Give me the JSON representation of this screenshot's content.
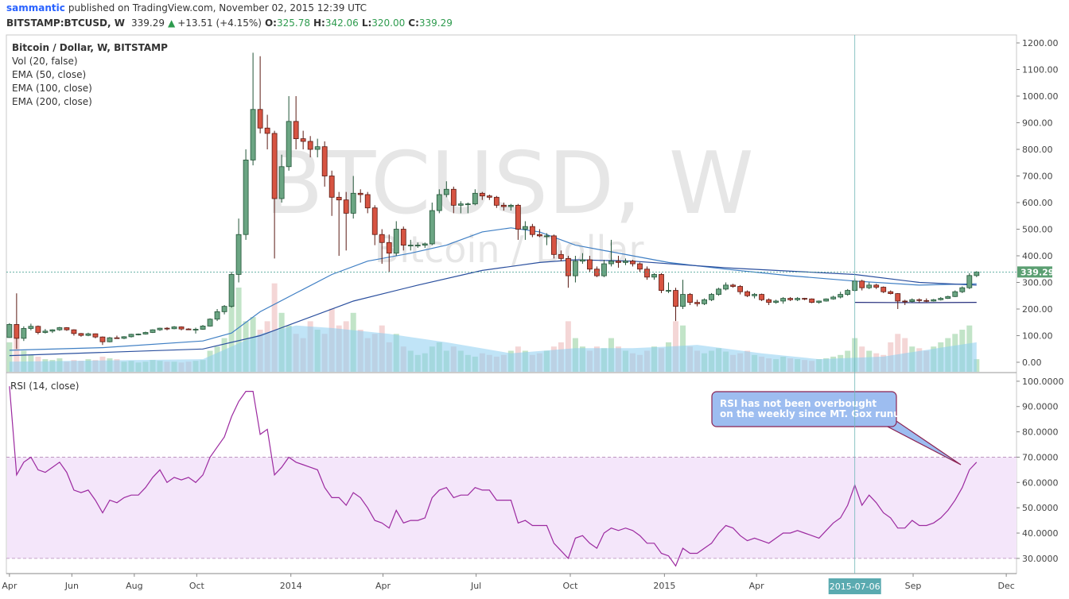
{
  "header": {
    "author": "sammantic",
    "published": "published on TradingView.com, November 02, 2015 12:39 UTC",
    "symbol": "BITSTAMP:BTCUSD, W",
    "last": "339.29",
    "arrow": "▲",
    "change": "+13.51 (+4.15%)",
    "items": [
      {
        "label": "O:",
        "value": "325.78"
      },
      {
        "label": "H:",
        "value": "342.06"
      },
      {
        "label": "L:",
        "value": "320.00"
      },
      {
        "label": "C:",
        "value": "339.29"
      }
    ]
  },
  "chart_data": {
    "type": "candlestick",
    "title": "Bitcoin / Dollar, W, BITSTAMP",
    "watermark": [
      "BTCUSD, W",
      "Bitcoin / Dollar"
    ],
    "legend": "top-left",
    "grid": false,
    "up_color": "#6ba583",
    "down_color": "#d75442",
    "xlim": [
      "2013-03-29",
      "2015-12-11"
    ],
    "xticks": [
      {
        "value": "2013-04-01",
        "label": "Apr"
      },
      {
        "value": "2013-06-01",
        "label": "Jun"
      },
      {
        "value": "2013-08-01",
        "label": "Aug"
      },
      {
        "value": "2013-10-01",
        "label": "Oct"
      },
      {
        "value": "2014-01-01",
        "label": "2014"
      },
      {
        "value": "2014-04-01",
        "label": "Apr"
      },
      {
        "value": "2014-07-01",
        "label": "Jul"
      },
      {
        "value": "2014-10-01",
        "label": "Oct"
      },
      {
        "value": "2015-01-01",
        "label": "2015"
      },
      {
        "value": "2015-04-01",
        "label": "Apr"
      },
      {
        "value": "2015-09-01",
        "label": "Sep"
      },
      {
        "value": "2015-12-01",
        "label": "Dec"
      }
    ],
    "crosshair_x": "2015-07-06",
    "last_price": {
      "value": 339.29,
      "label": "339.29"
    },
    "ylim": [
      -35.8,
      1229.9
    ],
    "yticks": [
      {
        "value": 0,
        "label": "0.00"
      },
      {
        "value": 100,
        "label": "100.00"
      },
      {
        "value": 200,
        "label": "200.00"
      },
      {
        "value": 300,
        "label": "300.00"
      },
      {
        "value": 400,
        "label": "400.00"
      },
      {
        "value": 500,
        "label": "500.00"
      },
      {
        "value": 600,
        "label": "600.00"
      },
      {
        "value": 700,
        "label": "700.00"
      },
      {
        "value": 800,
        "label": "800.00"
      },
      {
        "value": 900,
        "label": "900.00"
      },
      {
        "value": 1000,
        "label": "1000.00"
      },
      {
        "value": 1100,
        "label": "1100.00"
      },
      {
        "value": 1200,
        "label": "1200.00"
      }
    ],
    "x": [
      "2013-04-01",
      "2013-04-08",
      "2013-04-15",
      "2013-04-22",
      "2013-04-29",
      "2013-05-06",
      "2013-05-13",
      "2013-05-20",
      "2013-05-27",
      "2013-06-03",
      "2013-06-10",
      "2013-06-17",
      "2013-06-24",
      "2013-07-01",
      "2013-07-08",
      "2013-07-15",
      "2013-07-22",
      "2013-07-29",
      "2013-08-05",
      "2013-08-12",
      "2013-08-19",
      "2013-08-26",
      "2013-09-02",
      "2013-09-09",
      "2013-09-16",
      "2013-09-23",
      "2013-09-30",
      "2013-10-07",
      "2013-10-14",
      "2013-10-21",
      "2013-10-28",
      "2013-11-04",
      "2013-11-11",
      "2013-11-18",
      "2013-11-25",
      "2013-12-02",
      "2013-12-09",
      "2013-12-16",
      "2013-12-23",
      "2013-12-30",
      "2014-01-06",
      "2014-01-13",
      "2014-01-20",
      "2014-01-27",
      "2014-02-03",
      "2014-02-10",
      "2014-02-17",
      "2014-02-24",
      "2014-03-03",
      "2014-03-10",
      "2014-03-17",
      "2014-03-24",
      "2014-03-31",
      "2014-04-07",
      "2014-04-14",
      "2014-04-21",
      "2014-04-28",
      "2014-05-05",
      "2014-05-12",
      "2014-05-19",
      "2014-05-26",
      "2014-06-02",
      "2014-06-09",
      "2014-06-16",
      "2014-06-23",
      "2014-06-30",
      "2014-07-07",
      "2014-07-14",
      "2014-07-21",
      "2014-07-28",
      "2014-08-04",
      "2014-08-11",
      "2014-08-18",
      "2014-08-25",
      "2014-09-01",
      "2014-09-08",
      "2014-09-15",
      "2014-09-22",
      "2014-09-29",
      "2014-10-06",
      "2014-10-13",
      "2014-10-20",
      "2014-10-27",
      "2014-11-03",
      "2014-11-10",
      "2014-11-17",
      "2014-11-24",
      "2014-12-01",
      "2014-12-08",
      "2014-12-15",
      "2014-12-22",
      "2014-12-29",
      "2015-01-05",
      "2015-01-12",
      "2015-01-19",
      "2015-01-26",
      "2015-02-02",
      "2015-02-09",
      "2015-02-16",
      "2015-02-23",
      "2015-03-02",
      "2015-03-09",
      "2015-03-16",
      "2015-03-23",
      "2015-03-30",
      "2015-04-06",
      "2015-04-13",
      "2015-04-20",
      "2015-04-27",
      "2015-05-04",
      "2015-05-11",
      "2015-05-18",
      "2015-05-25",
      "2015-06-01",
      "2015-06-08",
      "2015-06-15",
      "2015-06-22",
      "2015-06-29",
      "2015-07-06",
      "2015-07-13",
      "2015-07-20",
      "2015-07-27",
      "2015-08-03",
      "2015-08-10",
      "2015-08-17",
      "2015-08-24",
      "2015-08-31",
      "2015-09-07",
      "2015-09-14",
      "2015-09-21",
      "2015-09-28",
      "2015-10-05",
      "2015-10-12",
      "2015-10-19",
      "2015-10-26",
      "2015-11-02"
    ],
    "open": [
      93,
      142,
      90,
      127,
      135,
      112,
      117,
      122,
      130,
      122,
      108,
      101,
      107,
      95,
      77,
      92,
      90,
      96,
      105,
      106,
      112,
      122,
      128,
      126,
      133,
      125,
      124,
      124,
      136,
      162,
      190,
      210,
      330,
      480,
      760,
      950,
      880,
      860,
      615,
      735,
      905,
      840,
      830,
      800,
      810,
      700,
      620,
      610,
      560,
      635,
      630,
      580,
      480,
      450,
      410,
      500,
      440,
      440,
      440,
      445,
      570,
      630,
      650,
      590,
      595,
      595,
      635,
      625,
      620,
      590,
      585,
      590,
      500,
      510,
      480,
      475,
      475,
      405,
      390,
      325,
      380,
      385,
      350,
      325,
      370,
      380,
      375,
      380,
      370,
      350,
      320,
      330,
      270,
      270,
      210,
      255,
      225,
      220,
      235,
      255,
      275,
      290,
      285,
      265,
      250,
      255,
      235,
      225,
      230,
      240,
      235,
      240,
      238,
      225,
      230,
      238,
      245,
      255,
      270,
      305,
      280,
      290,
      282,
      265,
      258,
      230,
      228,
      235,
      232,
      230,
      235,
      240,
      247,
      265,
      280,
      325.78
    ],
    "high": [
      147,
      259,
      135,
      145,
      138,
      125,
      124,
      133,
      132,
      124,
      110,
      111,
      108,
      97,
      95,
      100,
      98,
      107,
      108,
      115,
      124,
      130,
      132,
      136,
      135,
      128,
      130,
      140,
      165,
      200,
      215,
      340,
      540,
      800,
      1163,
      1150,
      930,
      870,
      780,
      1000,
      1000,
      870,
      850,
      840,
      830,
      720,
      640,
      640,
      700,
      650,
      640,
      590,
      500,
      480,
      530,
      510,
      460,
      450,
      450,
      600,
      650,
      680,
      660,
      605,
      600,
      650,
      640,
      630,
      625,
      600,
      595,
      595,
      530,
      520,
      500,
      485,
      480,
      420,
      400,
      400,
      410,
      400,
      360,
      385,
      460,
      400,
      390,
      385,
      375,
      360,
      335,
      335,
      300,
      280,
      310,
      260,
      235,
      240,
      260,
      280,
      300,
      295,
      290,
      270,
      260,
      258,
      240,
      235,
      245,
      245,
      245,
      242,
      240,
      232,
      240,
      250,
      265,
      275,
      315,
      310,
      300,
      295,
      285,
      270,
      260,
      235,
      240,
      240,
      240,
      238,
      245,
      250,
      270,
      285,
      335,
      342.06
    ],
    "low": [
      92,
      50,
      80,
      120,
      105,
      108,
      110,
      118,
      118,
      100,
      96,
      98,
      90,
      65,
      75,
      88,
      87,
      93,
      101,
      104,
      110,
      118,
      120,
      124,
      120,
      121,
      108,
      122,
      134,
      155,
      180,
      205,
      300,
      460,
      740,
      860,
      800,
      390,
      600,
      720,
      800,
      800,
      770,
      770,
      660,
      550,
      400,
      420,
      540,
      600,
      560,
      440,
      370,
      340,
      400,
      420,
      420,
      430,
      430,
      440,
      560,
      620,
      560,
      560,
      560,
      590,
      610,
      610,
      580,
      570,
      570,
      460,
      460,
      470,
      470,
      440,
      390,
      380,
      280,
      300,
      370,
      340,
      320,
      320,
      360,
      355,
      365,
      360,
      340,
      310,
      310,
      260,
      260,
      155,
      200,
      215,
      210,
      215,
      230,
      250,
      270,
      280,
      255,
      245,
      240,
      230,
      215,
      220,
      220,
      230,
      230,
      233,
      222,
      220,
      228,
      235,
      240,
      250,
      265,
      270,
      275,
      275,
      260,
      255,
      200,
      215,
      225,
      225,
      226,
      228,
      232,
      238,
      245,
      260,
      275,
      320
    ],
    "close": [
      142,
      90,
      127,
      135,
      112,
      117,
      122,
      130,
      122,
      108,
      101,
      107,
      95,
      77,
      92,
      90,
      96,
      105,
      106,
      112,
      122,
      128,
      126,
      133,
      125,
      124,
      124,
      136,
      162,
      190,
      210,
      330,
      480,
      760,
      950,
      880,
      860,
      615,
      735,
      905,
      840,
      830,
      800,
      810,
      700,
      620,
      610,
      560,
      635,
      630,
      580,
      480,
      450,
      410,
      500,
      440,
      440,
      440,
      445,
      570,
      630,
      650,
      590,
      595,
      595,
      635,
      625,
      620,
      590,
      585,
      590,
      500,
      510,
      480,
      475,
      475,
      405,
      390,
      325,
      380,
      385,
      350,
      325,
      370,
      380,
      375,
      380,
      370,
      350,
      320,
      330,
      270,
      270,
      210,
      255,
      225,
      220,
      235,
      255,
      275,
      290,
      285,
      265,
      250,
      255,
      235,
      225,
      230,
      240,
      235,
      240,
      238,
      225,
      230,
      238,
      245,
      255,
      270,
      305,
      280,
      290,
      282,
      265,
      258,
      230,
      228,
      235,
      232,
      230,
      235,
      240,
      247,
      265,
      280,
      326,
      339.29
    ],
    "series": [
      {
        "name": "EMA (50, close)",
        "color": "#3f7fc4",
        "x": [
          "2013-04-01",
          "2013-07-01",
          "2013-10-07",
          "2013-11-04",
          "2013-12-02",
          "2014-01-06",
          "2014-02-10",
          "2014-03-17",
          "2014-04-28",
          "2014-06-02",
          "2014-07-07",
          "2014-08-04",
          "2014-09-01",
          "2014-10-06",
          "2014-12-01",
          "2015-01-05",
          "2015-03-02",
          "2015-05-04",
          "2015-07-06",
          "2015-09-07",
          "2015-11-02"
        ],
        "values": [
          45,
          55,
          80,
          110,
          190,
          260,
          330,
          380,
          410,
          440,
          490,
          505,
          490,
          440,
          400,
          375,
          350,
          325,
          305,
          290,
          295
        ]
      },
      {
        "name": "EMA (100, close)",
        "color": "#2a4f9e",
        "x": [
          "2013-04-01",
          "2013-10-07",
          "2013-12-02",
          "2014-01-06",
          "2014-03-03",
          "2014-05-05",
          "2014-07-07",
          "2014-09-01",
          "2014-10-06",
          "2014-12-01",
          "2015-03-02",
          "2015-07-06",
          "2015-09-07",
          "2015-11-02"
        ],
        "values": [
          25,
          50,
          100,
          150,
          230,
          290,
          345,
          375,
          385,
          380,
          355,
          330,
          300,
          290
        ]
      },
      {
        "name": "EMA (200, close)",
        "color": "#27307e",
        "x": [
          "2015-07-06",
          "2015-09-07",
          "2015-11-02"
        ],
        "values": [
          225,
          224,
          225
        ]
      }
    ],
    "volume": {
      "name": "Vol (20, false)",
      "ylim": [
        0,
        400
      ],
      "ma_color": "#8ccdf0",
      "values": [
        35,
        50,
        25,
        20,
        18,
        15,
        14,
        16,
        12,
        14,
        13,
        15,
        14,
        18,
        16,
        15,
        12,
        13,
        11,
        12,
        14,
        13,
        12,
        12,
        11,
        12,
        13,
        14,
        25,
        30,
        40,
        80,
        100,
        60,
        65,
        50,
        60,
        105,
        70,
        55,
        45,
        40,
        60,
        50,
        45,
        75,
        55,
        60,
        70,
        50,
        40,
        45,
        55,
        35,
        45,
        30,
        25,
        20,
        22,
        30,
        35,
        25,
        30,
        25,
        20,
        18,
        22,
        20,
        18,
        20,
        25,
        30,
        25,
        20,
        22,
        25,
        30,
        35,
        60,
        40,
        30,
        25,
        30,
        28,
        40,
        30,
        25,
        22,
        20,
        25,
        30,
        28,
        35,
        60,
        55,
        30,
        25,
        22,
        25,
        28,
        24,
        20,
        22,
        25,
        20,
        18,
        16,
        15,
        18,
        16,
        15,
        14,
        13,
        15,
        16,
        18,
        20,
        25,
        40,
        30,
        25,
        22,
        20,
        35,
        45,
        40,
        30,
        28,
        25,
        30,
        35,
        40,
        45,
        50,
        55,
        15
      ],
      "ma_x": [
        "2013-04-01",
        "2013-10-07",
        "2013-11-04",
        "2013-12-02",
        "2014-01-06",
        "2014-02-10",
        "2014-04-07",
        "2014-06-02",
        "2014-08-04",
        "2014-10-06",
        "2014-12-01",
        "2015-01-05",
        "2015-02-02",
        "2015-04-06",
        "2015-06-01",
        "2015-08-03",
        "2015-10-05",
        "2015-11-02"
      ],
      "ma_values": [
        12,
        15,
        30,
        45,
        55,
        52,
        45,
        35,
        22,
        28,
        28,
        30,
        32,
        22,
        15,
        18,
        30,
        35
      ]
    },
    "rsi": {
      "title": "RSI (14, close)",
      "color": "#9c2aa0",
      "band_color": "#f4e6fa",
      "bands": [
        30,
        70
      ],
      "ylim": [
        24.0,
        103.1
      ],
      "yticks": [
        {
          "value": 30,
          "label": "30.0000"
        },
        {
          "value": 40,
          "label": "40.0000"
        },
        {
          "value": 50,
          "label": "50.0000"
        },
        {
          "value": 60,
          "label": "60.0000"
        },
        {
          "value": 70,
          "label": "70.0000"
        },
        {
          "value": 80,
          "label": "80.0000"
        },
        {
          "value": 90,
          "label": "90.0000"
        },
        {
          "value": 100,
          "label": "100.0000"
        }
      ],
      "values": [
        98,
        63,
        68,
        70,
        65,
        64,
        66,
        68,
        64,
        57,
        56,
        57,
        53,
        48,
        53,
        52,
        54,
        55,
        55,
        58,
        62,
        65,
        60,
        62,
        61,
        62,
        60,
        63,
        70,
        74,
        78,
        86,
        92,
        96,
        96,
        79,
        81,
        63,
        66,
        70,
        68,
        67,
        66,
        65,
        58,
        54,
        54,
        51,
        56,
        54,
        50,
        45,
        44,
        42,
        49,
        44,
        45,
        45,
        46,
        54,
        57,
        58,
        54,
        55,
        55,
        58,
        57,
        57,
        53,
        53,
        53,
        44,
        45,
        43,
        43,
        43,
        36,
        33,
        30,
        38,
        39,
        36,
        34,
        40,
        42,
        41,
        42,
        41,
        39,
        36,
        36,
        32,
        31,
        27,
        34,
        32,
        32,
        34,
        36,
        40,
        43,
        42,
        39,
        37,
        38,
        37,
        36,
        38,
        40,
        40,
        41,
        40,
        39,
        38,
        41,
        44,
        46,
        51,
        59,
        51,
        55,
        52,
        48,
        46,
        42,
        42,
        45,
        43,
        43,
        44,
        46,
        49,
        53,
        58,
        65,
        68
      ]
    },
    "annotation": [
      "RSI has not been overbought",
      "on the weekly since MT. Gox runup"
    ]
  }
}
